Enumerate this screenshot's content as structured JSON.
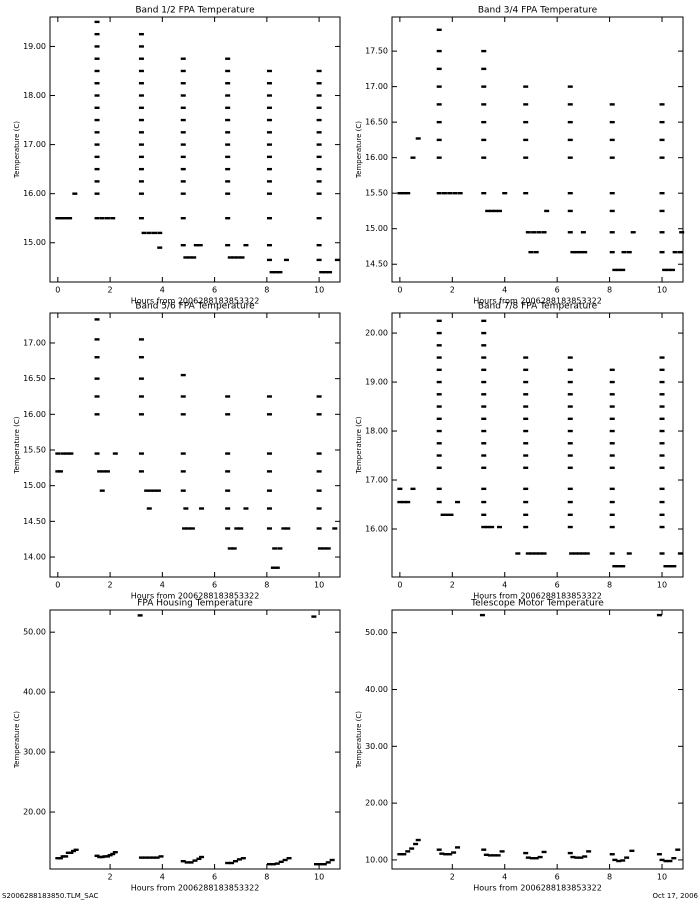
{
  "chart_data": [
    {
      "type": "scatter",
      "title": "Band 1/2 FPA Temperature",
      "x_label": "Hours from 2006288183853322",
      "y_label": "Temperature (C)",
      "color": "#000000",
      "xlim": [
        -0.3,
        10.8
      ],
      "xticks": [
        0,
        2,
        4,
        6,
        8,
        10
      ],
      "ylim": [
        14.2,
        19.6
      ],
      "yticks": [
        {
          "value": 15,
          "label": "15.00"
        },
        {
          "value": 16,
          "label": "16.00"
        },
        {
          "value": 17,
          "label": "17.00"
        },
        {
          "value": 18,
          "label": "18.00"
        },
        {
          "value": 19,
          "label": "19.00"
        }
      ],
      "x": [
        0,
        0.15,
        0.3,
        0.45,
        0.65,
        1.5,
        1.5,
        1.5,
        1.5,
        1.5,
        1.5,
        1.5,
        1.5,
        1.5,
        1.5,
        1.5,
        1.5,
        1.5,
        1.5,
        1.5,
        1.5,
        1.7,
        1.9,
        2.1,
        3.2,
        3.2,
        3.2,
        3.2,
        3.2,
        3.2,
        3.2,
        3.2,
        3.2,
        3.2,
        3.2,
        3.2,
        3.2,
        3.2,
        3.2,
        3.3,
        3.5,
        3.7,
        3.9,
        3.9,
        4.8,
        4.8,
        4.8,
        4.8,
        4.8,
        4.8,
        4.8,
        4.8,
        4.8,
        4.8,
        4.8,
        4.8,
        4.8,
        4.9,
        5.05,
        5.2,
        4.8,
        5.3,
        5.45,
        6.5,
        6.5,
        6.5,
        6.5,
        6.5,
        6.5,
        6.5,
        6.5,
        6.5,
        6.5,
        6.5,
        6.5,
        6.5,
        6.6,
        6.75,
        6.9,
        7.05,
        6.5,
        7.2,
        8.1,
        8.1,
        8.1,
        8.1,
        8.1,
        8.1,
        8.1,
        8.1,
        8.1,
        8.1,
        8.1,
        8.1,
        8.2,
        8.35,
        8.5,
        8.1,
        8.75,
        8.1,
        10,
        10,
        10,
        10,
        10,
        10,
        10,
        10,
        10,
        10,
        10,
        10,
        10.1,
        10.25,
        10.4,
        10,
        10.7,
        10
      ],
      "values": [
        15.5,
        15.5,
        15.5,
        15.5,
        16,
        16,
        16.25,
        16.5,
        16.75,
        17,
        17.25,
        17.5,
        17.75,
        18,
        18.25,
        18.5,
        18.75,
        19,
        19.25,
        19.5,
        15.5,
        15.5,
        15.5,
        15.5,
        15.5,
        16,
        16.25,
        16.5,
        16.75,
        17,
        17.25,
        17.5,
        17.75,
        18,
        18.25,
        18.5,
        18.75,
        19,
        19.25,
        15.2,
        15.2,
        15.2,
        15.2,
        14.9,
        15.5,
        16,
        16.25,
        16.5,
        16.75,
        17,
        17.25,
        17.5,
        17.75,
        18,
        18.25,
        18.5,
        18.75,
        14.7,
        14.7,
        14.7,
        14.95,
        14.95,
        14.95,
        15.5,
        16,
        16.25,
        16.5,
        16.75,
        17,
        17.25,
        17.5,
        17.75,
        18,
        18.25,
        18.5,
        18.75,
        14.7,
        14.7,
        14.7,
        14.7,
        14.95,
        14.95,
        15.5,
        16,
        16.25,
        16.5,
        16.75,
        17,
        17.25,
        17.5,
        17.75,
        18,
        18.25,
        18.5,
        14.4,
        14.4,
        14.4,
        14.65,
        14.65,
        14.95,
        15.5,
        16,
        16.25,
        16.5,
        16.75,
        17,
        17.25,
        17.5,
        17.75,
        18,
        18.25,
        18.5,
        14.4,
        14.4,
        14.4,
        14.65,
        14.65,
        14.95
      ]
    },
    {
      "type": "scatter",
      "title": "Band 3/4 FPA Temperature",
      "x_label": "Hours from 2006288183853322",
      "y_label": "Temperature (C)",
      "color": "#000000",
      "xlim": [
        -0.3,
        10.8
      ],
      "xticks": [
        0,
        2,
        4,
        6,
        8,
        10
      ],
      "ylim": [
        14.25,
        17.98
      ],
      "yticks": [
        {
          "value": 14.5,
          "label": "14.50"
        },
        {
          "value": 15,
          "label": "15.00"
        },
        {
          "value": 15.5,
          "label": "15.50"
        },
        {
          "value": 16,
          "label": "16.00"
        },
        {
          "value": 16.5,
          "label": "16.50"
        },
        {
          "value": 17,
          "label": "17.00"
        },
        {
          "value": 17.5,
          "label": "17.50"
        }
      ],
      "x": [
        0,
        0.15,
        0.3,
        0.5,
        0.7,
        1.5,
        1.5,
        1.5,
        1.5,
        1.5,
        1.5,
        1.5,
        1.5,
        1.5,
        1.7,
        1.9,
        2.1,
        2.3,
        3.2,
        3.2,
        3.2,
        3.2,
        3.2,
        3.2,
        3.2,
        3.2,
        3.35,
        3.5,
        3.65,
        3.8,
        4.0,
        4.8,
        4.8,
        4.8,
        4.8,
        4.8,
        4.8,
        4.9,
        5.1,
        5.3,
        5.5,
        5.0,
        5.2,
        5.6,
        6.5,
        6.5,
        6.5,
        6.5,
        6.5,
        6.5,
        6.5,
        6.5,
        6.6,
        6.75,
        6.9,
        7.05,
        7.0,
        8.1,
        8.1,
        8.1,
        8.1,
        8.1,
        8.1,
        8.1,
        8.1,
        8.2,
        8.35,
        8.5,
        8.55,
        8.75,
        8.9,
        10,
        10,
        10,
        10,
        10,
        10,
        10,
        10,
        10.1,
        10.25,
        10.4,
        10.5,
        10.7,
        10.75
      ],
      "values": [
        15.5,
        15.5,
        15.5,
        16,
        16.27,
        16,
        16.25,
        16.5,
        16.75,
        17,
        17.25,
        17.5,
        17.8,
        15.5,
        15.5,
        15.5,
        15.5,
        15.5,
        16,
        16.25,
        16.5,
        16.75,
        17,
        17.25,
        17.5,
        15.5,
        15.25,
        15.25,
        15.25,
        15.25,
        15.5,
        15.5,
        16,
        16.25,
        16.5,
        16.75,
        17,
        14.95,
        14.95,
        14.95,
        14.95,
        14.67,
        14.67,
        15.25,
        14.95,
        15.25,
        15.5,
        16,
        16.25,
        16.5,
        16.75,
        17,
        14.67,
        14.67,
        14.67,
        14.67,
        14.95,
        14.67,
        14.95,
        15.25,
        15.5,
        16,
        16.25,
        16.5,
        16.75,
        14.42,
        14.42,
        14.42,
        14.67,
        14.67,
        14.95,
        14.67,
        14.95,
        15.25,
        15.5,
        16,
        16.25,
        16.5,
        16.75,
        14.42,
        14.42,
        14.42,
        14.67,
        14.67,
        14.95
      ]
    },
    {
      "type": "scatter",
      "title": "Band 5/6 FPA Temperature",
      "x_label": "Hours from 2006288183853322",
      "y_label": "Temperature (C)",
      "color": "#000000",
      "xlim": [
        -0.3,
        10.8
      ],
      "xticks": [
        0,
        2,
        4,
        6,
        8,
        10
      ],
      "ylim": [
        13.72,
        17.42
      ],
      "yticks": [
        {
          "value": 14,
          "label": "14.00"
        },
        {
          "value": 14.5,
          "label": "14.50"
        },
        {
          "value": 15,
          "label": "15.00"
        },
        {
          "value": 15.5,
          "label": "15.50"
        },
        {
          "value": 16,
          "label": "16.00"
        },
        {
          "value": 16.5,
          "label": "16.50"
        },
        {
          "value": 17,
          "label": "17.00"
        }
      ],
      "x": [
        0,
        0.1,
        0.2,
        0.35,
        0.5,
        0,
        1.5,
        1.5,
        1.5,
        1.5,
        1.5,
        1.5,
        1.5,
        1.6,
        1.75,
        1.9,
        1.7,
        2.2,
        3.2,
        3.2,
        3.2,
        3.2,
        3.2,
        3.2,
        3.2,
        3.4,
        3.55,
        3.7,
        3.85,
        3.5,
        4.8,
        4.8,
        4.8,
        4.8,
        4.8,
        4.8,
        4.85,
        5.0,
        5.15,
        4.9,
        5.5,
        6.5,
        6.5,
        6.5,
        6.5,
        6.5,
        6.5,
        6.6,
        6.75,
        6.85,
        7.0,
        6.5,
        7.2,
        8.1,
        8.1,
        8.1,
        8.1,
        8.1,
        8.1,
        8.1,
        8.25,
        8.4,
        8.3,
        8.5,
        8.65,
        8.8,
        10,
        10,
        10,
        10,
        10,
        10,
        10,
        10.05,
        10.2,
        10.35,
        10.6
      ],
      "values": [
        15.2,
        15.2,
        15.45,
        15.45,
        15.45,
        15.45,
        15.45,
        16,
        16.25,
        16.5,
        16.8,
        17.05,
        17.33,
        15.2,
        15.2,
        15.2,
        14.93,
        15.45,
        15.2,
        15.45,
        16,
        16.25,
        16.5,
        16.8,
        17.05,
        14.93,
        14.93,
        14.93,
        14.93,
        14.68,
        14.93,
        15.2,
        15.45,
        16,
        16.25,
        16.55,
        14.4,
        14.4,
        14.4,
        14.68,
        14.68,
        14.68,
        14.93,
        15.2,
        15.45,
        16,
        16.25,
        14.12,
        14.12,
        14.4,
        14.4,
        14.4,
        14.68,
        14.4,
        14.68,
        14.93,
        15.2,
        15.45,
        16,
        16.25,
        13.85,
        13.85,
        14.12,
        14.12,
        14.4,
        14.4,
        14.4,
        14.68,
        14.93,
        15.2,
        15.45,
        16,
        16.25,
        14.12,
        14.12,
        14.12,
        14.4
      ]
    },
    {
      "type": "scatter",
      "title": "Band 7/8 FPA Temperature",
      "x_label": "Hours from 2006288183853322",
      "y_label": "Temperature (C)",
      "color": "#000000",
      "xlim": [
        -0.3,
        10.8
      ],
      "xticks": [
        0,
        2,
        4,
        6,
        8,
        10
      ],
      "ylim": [
        15.02,
        20.41
      ],
      "yticks": [
        {
          "value": 16,
          "label": "16.00"
        },
        {
          "value": 17,
          "label": "17.00"
        },
        {
          "value": 18,
          "label": "18.00"
        },
        {
          "value": 19,
          "label": "19.00"
        },
        {
          "value": 20,
          "label": "20.00"
        }
      ],
      "x": [
        0,
        0.15,
        0.3,
        0,
        0.5,
        1.5,
        1.5,
        1.5,
        1.5,
        1.5,
        1.5,
        1.5,
        1.5,
        1.5,
        1.5,
        1.5,
        1.5,
        1.5,
        1.5,
        1.5,
        1.65,
        1.8,
        1.95,
        2.2,
        3.2,
        3.2,
        3.2,
        3.2,
        3.2,
        3.2,
        3.2,
        3.2,
        3.2,
        3.2,
        3.2,
        3.2,
        3.2,
        3.2,
        3.2,
        3.2,
        3.2,
        3.35,
        3.5,
        3.8,
        4.8,
        4.8,
        4.8,
        4.8,
        4.8,
        4.8,
        4.8,
        4.8,
        4.8,
        4.8,
        4.8,
        4.8,
        4.8,
        4.8,
        4.9,
        5.05,
        5.2,
        5.35,
        5.5,
        4.5,
        6.5,
        6.5,
        6.5,
        6.5,
        6.5,
        6.5,
        6.5,
        6.5,
        6.5,
        6.5,
        6.5,
        6.5,
        6.5,
        6.5,
        6.55,
        6.7,
        6.85,
        7.0,
        7.15,
        8.1,
        8.1,
        8.1,
        8.1,
        8.1,
        8.1,
        8.1,
        8.1,
        8.1,
        8.1,
        8.1,
        8.1,
        8.1,
        8.1,
        8.2,
        8.35,
        8.5,
        8.75,
        10,
        10,
        10,
        10,
        10,
        10,
        10,
        10,
        10,
        10,
        10,
        10,
        10,
        10,
        10,
        10.15,
        10.3,
        10.45,
        10.7
      ],
      "values": [
        16.55,
        16.55,
        16.55,
        16.82,
        16.82,
        16.55,
        16.82,
        17.25,
        17.5,
        17.75,
        18,
        18.25,
        18.5,
        18.75,
        19,
        19.25,
        19.5,
        19.75,
        20,
        20.25,
        16.29,
        16.29,
        16.29,
        16.55,
        16.04,
        16.29,
        16.55,
        16.82,
        17.25,
        17.5,
        17.75,
        18,
        18.25,
        18.5,
        18.75,
        19,
        19.25,
        19.5,
        19.75,
        20,
        20.25,
        16.04,
        16.04,
        16.04,
        16.04,
        16.29,
        16.55,
        16.82,
        17.25,
        17.5,
        17.75,
        18,
        18.25,
        18.5,
        18.75,
        19,
        19.25,
        19.5,
        15.5,
        15.5,
        15.5,
        15.5,
        15.5,
        15.5,
        16.04,
        16.29,
        16.55,
        16.82,
        17.25,
        17.5,
        17.75,
        18,
        18.25,
        18.5,
        18.75,
        19,
        19.25,
        19.5,
        15.5,
        15.5,
        15.5,
        15.5,
        15.5,
        15.5,
        16.04,
        16.29,
        16.55,
        16.82,
        17.25,
        17.5,
        17.75,
        18,
        18.25,
        18.5,
        18.75,
        19,
        19.25,
        15.24,
        15.24,
        15.24,
        15.5,
        15.5,
        16.04,
        16.29,
        16.55,
        16.82,
        17.25,
        17.5,
        17.75,
        18,
        18.25,
        18.5,
        18.75,
        19,
        19.25,
        19.5,
        15.24,
        15.24,
        15.24,
        15.5
      ]
    },
    {
      "type": "scatter",
      "title": "FPA Housing Temperature",
      "x_label": "Hours from 2006288183853322",
      "y_label": "Temperature (C)",
      "color": "#000000",
      "xlim": [
        -0.3,
        10.8
      ],
      "xticks": [
        2,
        4,
        6,
        8,
        10
      ],
      "ylim": [
        10.5,
        53.7
      ],
      "yticks": [
        {
          "value": 20,
          "label": "20.00"
        },
        {
          "value": 30,
          "label": "30.00"
        },
        {
          "value": 40,
          "label": "40.00"
        },
        {
          "value": 50,
          "label": "50.00"
        }
      ],
      "x": [
        0,
        0.1,
        0.2,
        0.3,
        0.4,
        0.5,
        0.6,
        0.7,
        1.5,
        1.6,
        1.7,
        1.8,
        1.9,
        2.0,
        2.1,
        2.2,
        3.2,
        3.35,
        3.5,
        3.65,
        3.8,
        3.95,
        3.15,
        4.8,
        4.95,
        5.1,
        5.25,
        5.4,
        5.5,
        6.5,
        6.65,
        6.8,
        6.95,
        7.1,
        8.1,
        8.25,
        8.4,
        8.55,
        8.7,
        8.85,
        9.9,
        10.05,
        10.2,
        10.35,
        10.5,
        9.8
      ],
      "values": [
        12.3,
        12.3,
        12.6,
        12.6,
        13.2,
        13.2,
        13.5,
        13.7,
        12.7,
        12.5,
        12.5,
        12.6,
        12.6,
        12.8,
        13.0,
        13.3,
        12.4,
        12.4,
        12.4,
        12.4,
        12.4,
        12.6,
        52.8,
        11.8,
        11.6,
        11.6,
        11.9,
        12.2,
        12.5,
        11.5,
        11.5,
        11.8,
        12.1,
        12.3,
        11.3,
        11.3,
        11.4,
        11.7,
        12.0,
        12.3,
        11.3,
        11.3,
        11.3,
        11.6,
        12.0,
        52.6
      ]
    },
    {
      "type": "scatter",
      "title": "Telescope Motor Temperature",
      "x_label": "Hours from 2006288183853322",
      "y_label": "Temperature (C)",
      "color": "#000000",
      "xlim": [
        -0.3,
        10.8
      ],
      "xticks": [
        2,
        4,
        6,
        8,
        10
      ],
      "ylim": [
        8.4,
        54
      ],
      "yticks": [
        {
          "value": 10,
          "label": "10.00"
        },
        {
          "value": 20,
          "label": "20.00"
        },
        {
          "value": 30,
          "label": "30.00"
        },
        {
          "value": 40,
          "label": "40.00"
        },
        {
          "value": 50,
          "label": "50.00"
        }
      ],
      "x": [
        0,
        0.15,
        0.3,
        0.45,
        0.6,
        0.7,
        1.5,
        1.6,
        1.75,
        1.9,
        2.05,
        2.2,
        3.2,
        3.3,
        3.45,
        3.6,
        3.75,
        3.9,
        3.15,
        4.8,
        4.9,
        5.05,
        5.2,
        5.35,
        5.5,
        6.5,
        6.6,
        6.75,
        6.9,
        7.05,
        7.2,
        8.1,
        8.2,
        8.35,
        8.5,
        8.65,
        8.85,
        9.9,
        10.0,
        10.15,
        10.3,
        10.45,
        10.6,
        9.9
      ],
      "values": [
        11,
        11,
        11.5,
        12,
        12.8,
        13.5,
        11.8,
        11.1,
        11,
        11,
        11.3,
        12.2,
        11.8,
        10.9,
        10.8,
        10.8,
        10.8,
        11.5,
        53.1,
        11.2,
        10.4,
        10.3,
        10.3,
        10.5,
        11.4,
        11.2,
        10.5,
        10.4,
        10.4,
        10.6,
        11.5,
        11,
        10,
        9.8,
        9.9,
        10.4,
        11.6,
        11,
        10,
        9.8,
        9.8,
        10.3,
        11.8,
        53.1
      ]
    }
  ],
  "footer": {
    "left": "S2006288183850.TLM_SAC",
    "right": "Oct 17, 2006"
  }
}
